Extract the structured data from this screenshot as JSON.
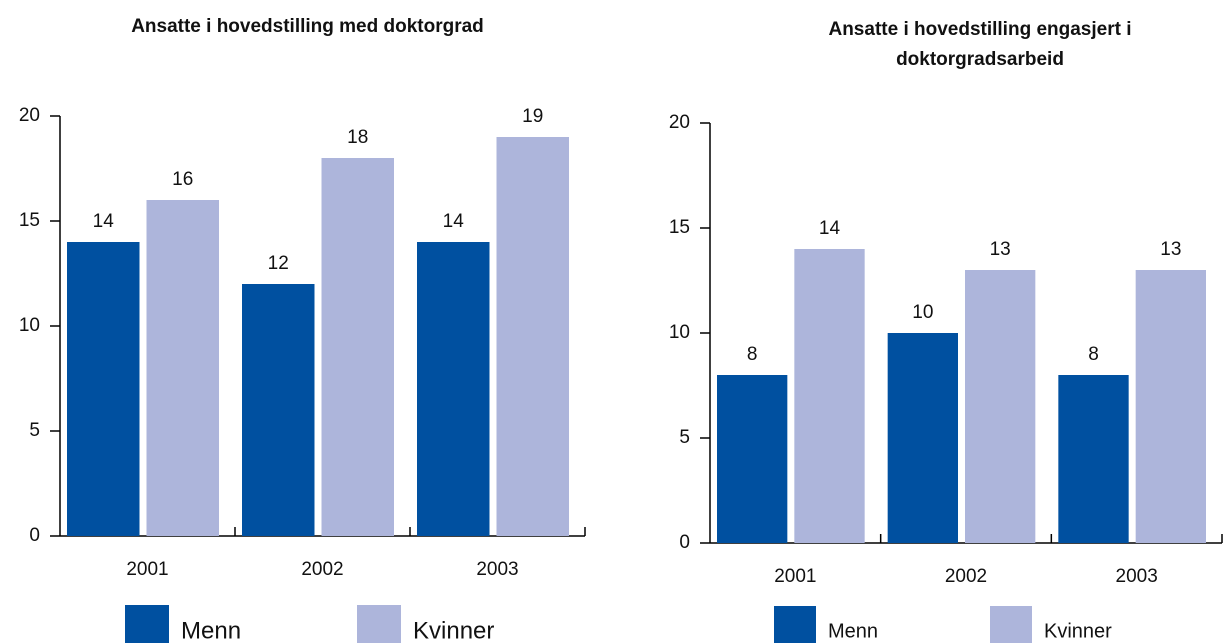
{
  "chart_data": [
    {
      "type": "bar",
      "title": "Ansatte i hovedstilling med doktorgrad",
      "categories": [
        "2001",
        "2002",
        "2003"
      ],
      "series": [
        {
          "name": "Menn",
          "color": "#0050a0",
          "values": [
            14,
            12,
            14
          ]
        },
        {
          "name": "Kvinner",
          "color": "#adb5db",
          "values": [
            16,
            18,
            19
          ]
        }
      ],
      "ylim": [
        0,
        20
      ],
      "yticks": [
        0,
        5,
        10,
        15,
        20
      ],
      "legend": "bottom"
    },
    {
      "type": "bar",
      "title": "Ansatte i hovedstilling engasjert i doktorgradsarbeid",
      "categories": [
        "2001",
        "2002",
        "2003"
      ],
      "series": [
        {
          "name": "Menn",
          "color": "#0050a0",
          "values": [
            8,
            10,
            8
          ]
        },
        {
          "name": "Kvinner",
          "color": "#adb5db",
          "values": [
            14,
            13,
            13
          ]
        }
      ],
      "ylim": [
        0,
        20
      ],
      "yticks": [
        0,
        5,
        10,
        15,
        20
      ],
      "legend": "bottom"
    }
  ]
}
